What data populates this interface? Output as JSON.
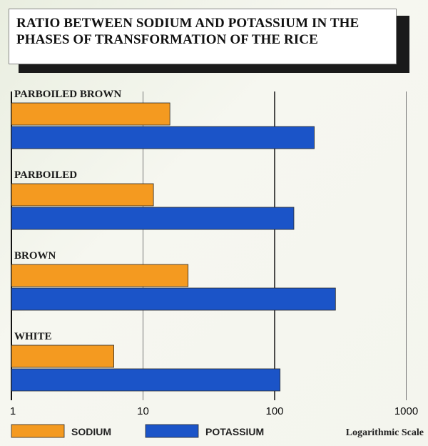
{
  "chart_data": {
    "type": "bar",
    "orientation": "horizontal",
    "title": "RATIO BETWEEN SODIUM AND POTASSIUM IN THE PHASES OF TRANSFORMATION OF THE RICE",
    "categories": [
      "PARBOILED BROWN",
      "PARBOILED",
      "BROWN",
      "WHITE"
    ],
    "series": [
      {
        "name": "SODIUM",
        "color": "#f49a20",
        "values": [
          16,
          12,
          22,
          6
        ]
      },
      {
        "name": "POTASSIUM",
        "color": "#1b54c8",
        "values": [
          200,
          140,
          290,
          110
        ]
      }
    ],
    "x_scale": "log",
    "xlim": [
      1,
      1000
    ],
    "x_ticks": [
      "1",
      "10",
      "100",
      "1000"
    ],
    "grid": true,
    "legend_position": "bottom",
    "note": "Logarithmic Scale"
  }
}
